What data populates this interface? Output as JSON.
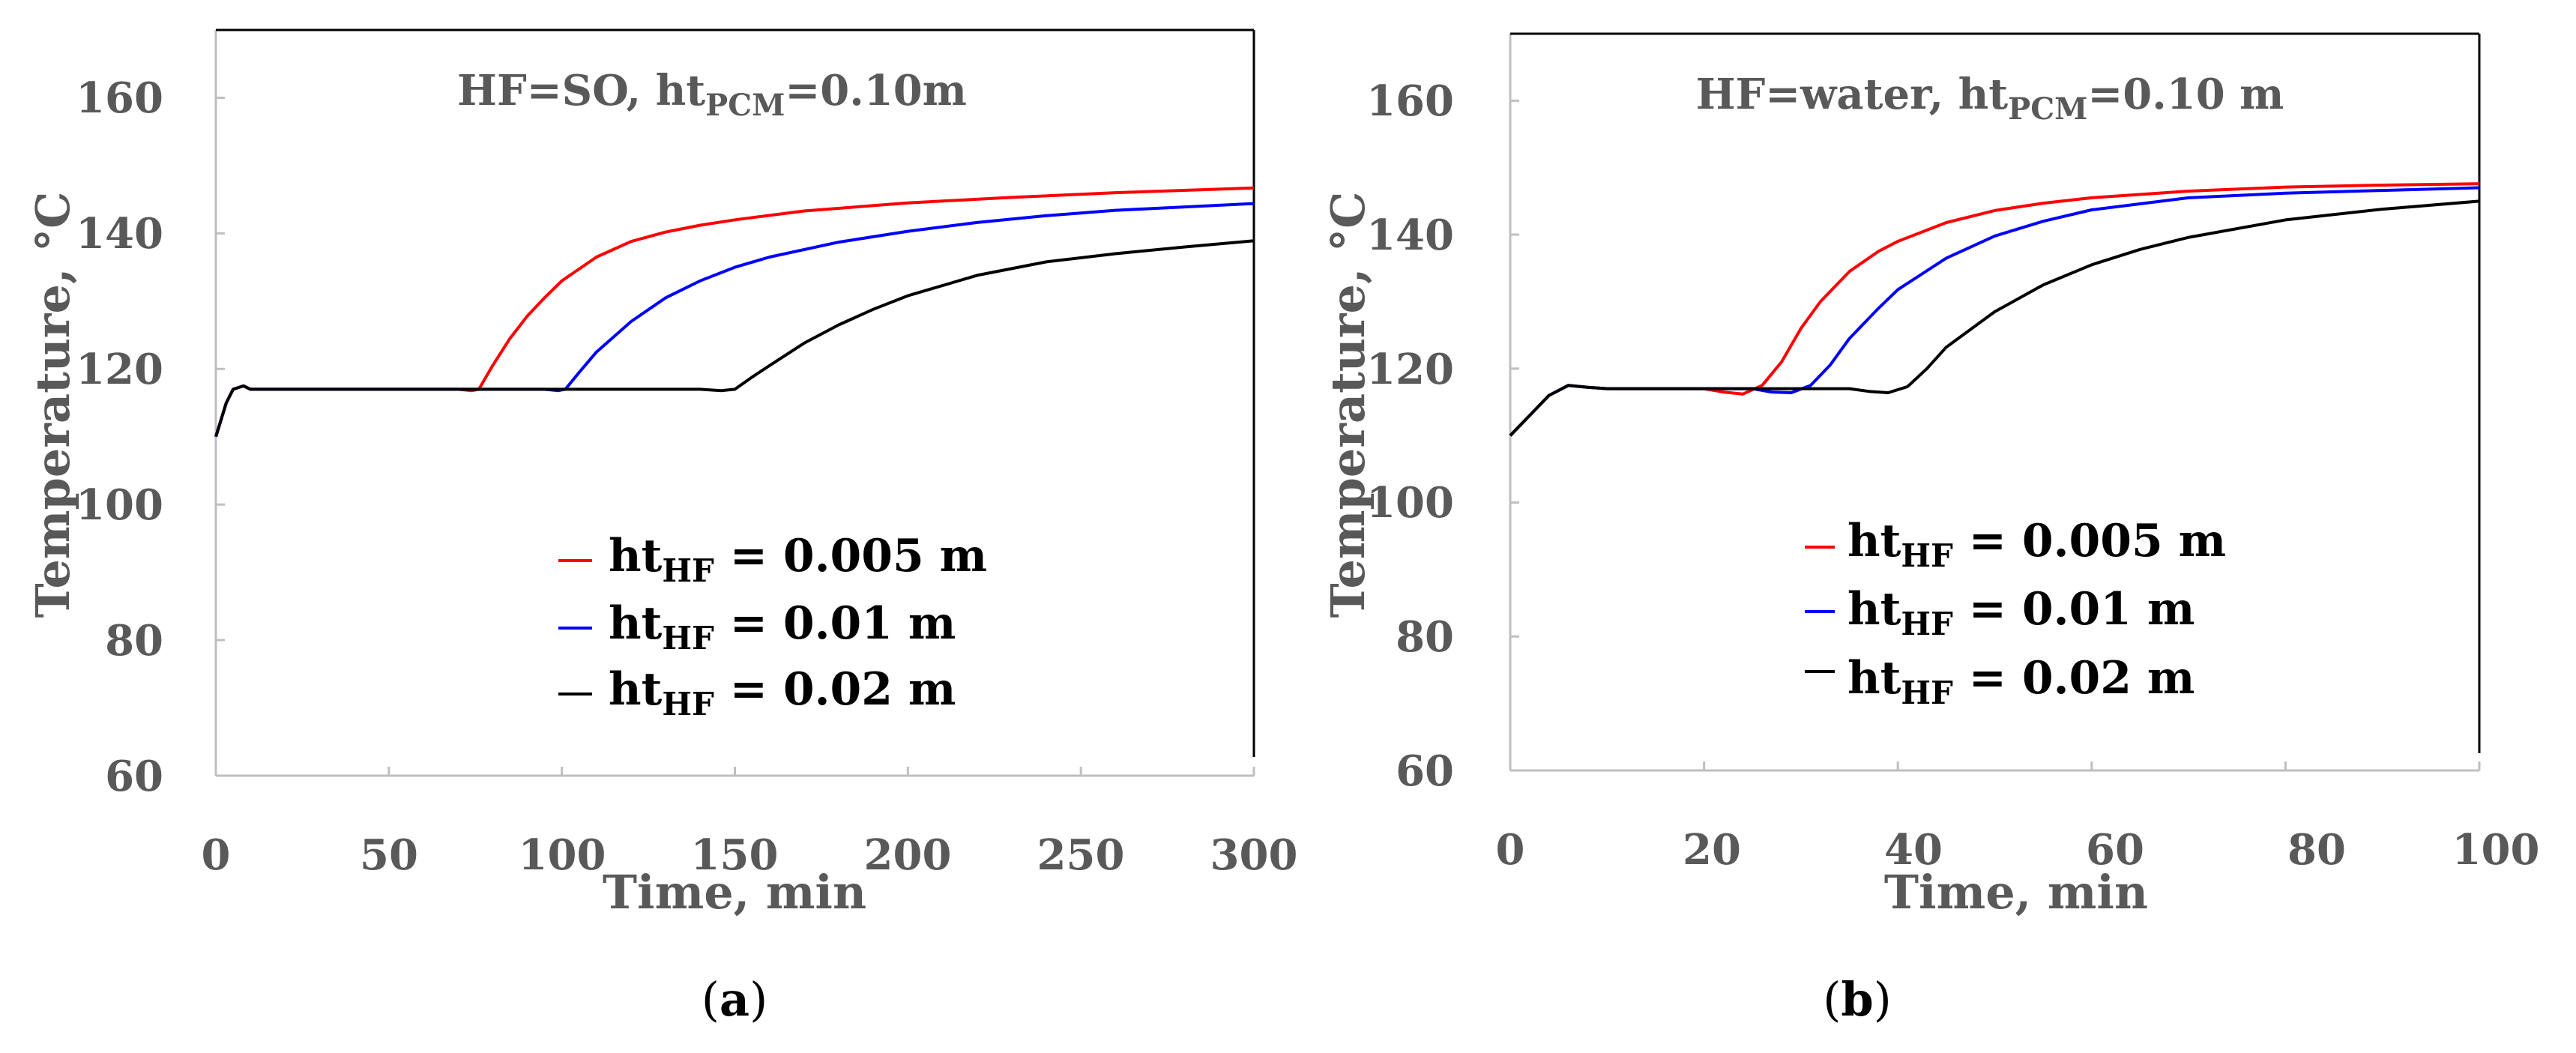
{
  "chart_data": [
    {
      "panel_label": "(a)",
      "panel_label_letter": "a",
      "type": "line",
      "title": {
        "base": "HF=SO, ht",
        "sub": "PCM",
        "tail": "=0.10m"
      },
      "xlabel": "Time, min",
      "ylabel": "Temperature, °C",
      "xlim": [
        0,
        300
      ],
      "ylim": [
        60,
        170
      ],
      "xticks": [
        0,
        50,
        100,
        150,
        200,
        250,
        300
      ],
      "xtick_labels": [
        "0",
        "50",
        "100",
        "150",
        "200",
        "250",
        "300"
      ],
      "yticks": [
        60,
        80,
        100,
        120,
        140,
        160
      ],
      "ytick_labels": [
        "60",
        "80",
        "100",
        "120",
        "140",
        "160"
      ],
      "grid": false,
      "legend_position": "center-right",
      "series": [
        {
          "name": "ht_HF = 0.005 m",
          "label_base": "ht",
          "label_sub": "HF",
          "label_tail": " = 0.005 m",
          "color": "#ff0000",
          "x": [
            0,
            3,
            5,
            8,
            10,
            20,
            40,
            60,
            70,
            74,
            76,
            80,
            85,
            90,
            95,
            100,
            110,
            120,
            130,
            140,
            150,
            170,
            200,
            230,
            260,
            300
          ],
          "y": [
            110,
            115,
            117,
            117.5,
            117,
            117,
            117,
            117,
            117,
            116.8,
            117,
            120.5,
            124.5,
            127.8,
            130.5,
            133,
            136.5,
            138.8,
            140.2,
            141.2,
            142,
            143.3,
            144.5,
            145.3,
            146,
            146.7
          ]
        },
        {
          "name": "ht_HF = 0.01 m",
          "label_base": "ht",
          "label_sub": "HF",
          "label_tail": " = 0.01 m",
          "color": "#0000ff",
          "x": [
            0,
            3,
            5,
            8,
            10,
            20,
            50,
            80,
            95,
            99,
            101,
            105,
            110,
            120,
            130,
            140,
            150,
            160,
            180,
            200,
            220,
            240,
            260,
            280,
            300
          ],
          "y": [
            110,
            115,
            117,
            117.5,
            117,
            117,
            117,
            117,
            117,
            116.8,
            117,
            119.5,
            122.5,
            127,
            130.5,
            133,
            135,
            136.5,
            138.7,
            140.3,
            141.6,
            142.6,
            143.4,
            143.9,
            144.4
          ]
        },
        {
          "name": "ht_HF = 0.02 m",
          "label_base": "ht",
          "label_sub": "HF",
          "label_tail": " = 0.02 m",
          "color": "#000000",
          "x": [
            0,
            3,
            5,
            8,
            10,
            20,
            60,
            100,
            140,
            146,
            150,
            155,
            160,
            170,
            180,
            190,
            200,
            220,
            240,
            260,
            280,
            300
          ],
          "y": [
            110,
            115,
            117,
            117.5,
            117,
            117,
            117,
            117,
            117,
            116.8,
            117,
            118.8,
            120.5,
            123.8,
            126.5,
            128.8,
            130.8,
            133.8,
            135.8,
            137,
            138,
            138.9
          ]
        }
      ]
    },
    {
      "panel_label": "(b)",
      "panel_label_letter": "b",
      "type": "line",
      "title": {
        "base": "HF=water, ht",
        "sub": "PCM",
        "tail": "=0.10 m"
      },
      "xlabel": "Time, min",
      "ylabel": "Temperature, °C",
      "xlim": [
        0,
        100
      ],
      "ylim": [
        60,
        170
      ],
      "xticks": [
        0,
        20,
        40,
        60,
        80,
        100
      ],
      "xtick_labels": [
        "0",
        "20",
        "40",
        "60",
        "80",
        "100"
      ],
      "yticks": [
        60,
        80,
        100,
        120,
        140,
        160
      ],
      "ytick_labels": [
        "60",
        "80",
        "100",
        "120",
        "140",
        "160"
      ],
      "grid": false,
      "legend_position": "center-right",
      "series": [
        {
          "name": "ht_HF = 0.005 m",
          "label_base": "ht",
          "label_sub": "HF",
          "label_tail": " = 0.005 m",
          "color": "#ff0000",
          "x": [
            0,
            2,
            4,
            6,
            8,
            10,
            15,
            20,
            22,
            24,
            26,
            28,
            30,
            32,
            35,
            38,
            40,
            45,
            50,
            55,
            60,
            70,
            80,
            90,
            100
          ],
          "y": [
            110,
            113,
            116,
            117.5,
            117.2,
            117,
            117,
            117,
            116.5,
            116.2,
            117.5,
            121,
            126,
            130,
            134.5,
            137.5,
            139,
            141.8,
            143.6,
            144.7,
            145.5,
            146.5,
            147.1,
            147.4,
            147.6
          ]
        },
        {
          "name": "ht_HF = 0.01 m",
          "label_base": "ht",
          "label_sub": "HF",
          "label_tail": " = 0.01 m",
          "color": "#0000ff",
          "x": [
            0,
            2,
            4,
            6,
            8,
            10,
            20,
            25,
            27,
            29,
            31,
            33,
            35,
            38,
            40,
            45,
            50,
            55,
            60,
            70,
            80,
            90,
            100
          ],
          "y": [
            110,
            113,
            116,
            117.5,
            117.2,
            117,
            117,
            117,
            116.5,
            116.4,
            117.5,
            120.5,
            124.5,
            129,
            131.8,
            136.5,
            139.8,
            142,
            143.7,
            145.5,
            146.2,
            146.6,
            147
          ]
        },
        {
          "name": "ht_HF = 0.02 m",
          "label_base": "ht",
          "label_sub": "HF",
          "label_tail": " = 0.02 m",
          "color": "#000000",
          "x": [
            0,
            2,
            4,
            6,
            8,
            10,
            20,
            30,
            35,
            37,
            39,
            41,
            43,
            45,
            50,
            55,
            60,
            65,
            70,
            80,
            90,
            100
          ],
          "y": [
            110,
            113,
            116,
            117.5,
            117.2,
            117,
            117,
            117,
            117,
            116.6,
            116.4,
            117.3,
            120,
            123.2,
            128.5,
            132.5,
            135.5,
            137.8,
            139.6,
            142.2,
            143.8,
            145
          ]
        }
      ]
    }
  ]
}
